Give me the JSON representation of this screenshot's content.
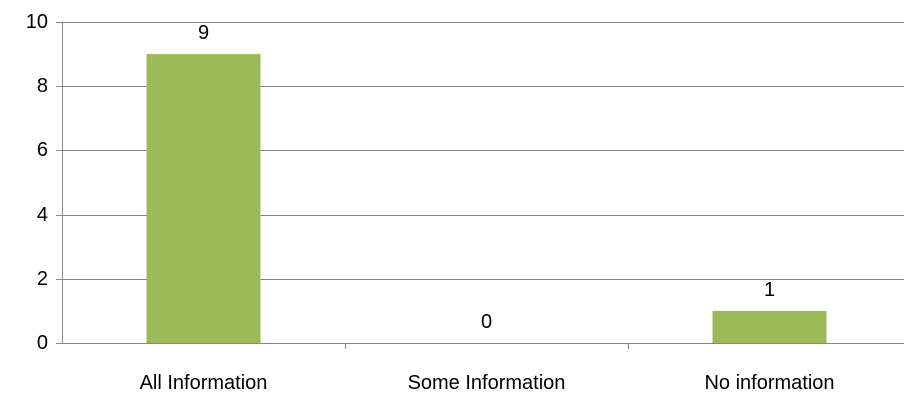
{
  "chart_data": {
    "type": "bar",
    "categories": [
      "All Information",
      "Some Information",
      "No information"
    ],
    "values": [
      9,
      0,
      1
    ],
    "data_labels": [
      "9",
      "0",
      "1"
    ],
    "ylim": [
      0,
      10
    ],
    "yticks": [
      0,
      2,
      4,
      6,
      8,
      10
    ],
    "ytick_labels": [
      "0",
      "2",
      "4",
      "6",
      "8",
      "10"
    ],
    "grid": true,
    "legend": "none",
    "bar_color": "#9bbb59"
  }
}
